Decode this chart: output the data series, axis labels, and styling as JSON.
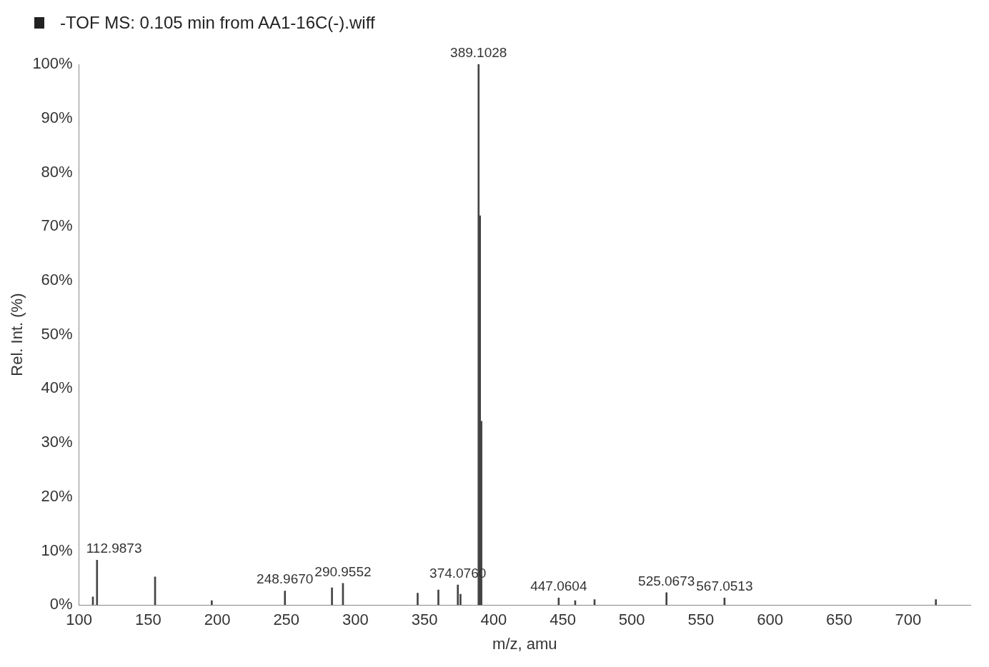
{
  "chart_data": {
    "type": "bar",
    "title": "-TOF MS: 0.105 min from AA1-16C(-).wiff",
    "xlabel": "m/z, amu",
    "ylabel": "Rel. Int. (%)",
    "x": [
      110.0,
      112.9873,
      155.0,
      196.0,
      248.967,
      283.0,
      290.9552,
      345.0,
      360.0,
      374.076,
      376.0,
      389.1028,
      390.1,
      391.1,
      447.0604,
      459.0,
      473.0,
      525.0673,
      567.0513,
      720.0
    ],
    "values": [
      1.5,
      8.3,
      5.2,
      0.8,
      2.6,
      3.2,
      4.0,
      2.2,
      2.8,
      3.7,
      2.0,
      100,
      72,
      34,
      1.3,
      0.8,
      1.0,
      2.3,
      1.3,
      1.0
    ],
    "color": "#444444",
    "annotations": [
      {
        "text": "112.9873",
        "x": 112.9873,
        "y": 8.3
      },
      {
        "text": "248.9670",
        "x": 248.967,
        "y": 2.6
      },
      {
        "text": "290.9552",
        "x": 290.9552,
        "y": 4.0
      },
      {
        "text": "374.0760",
        "x": 374.076,
        "y": 3.7
      },
      {
        "text": "389.1028",
        "x": 389.1028,
        "y": 100
      },
      {
        "text": "447.0604",
        "x": 447.0604,
        "y": 1.3
      },
      {
        "text": "525.0673",
        "x": 525.0673,
        "y": 2.3
      },
      {
        "text": "567.0513",
        "x": 567.0513,
        "y": 1.3
      }
    ],
    "xlim": [
      100,
      745
    ],
    "xticks": [
      100,
      150,
      200,
      250,
      300,
      350,
      400,
      450,
      500,
      550,
      600,
      650,
      700
    ],
    "ylim": [
      0,
      100
    ],
    "yticks": [
      {
        "value": 0,
        "label": "0%"
      },
      {
        "value": 10,
        "label": "10%"
      },
      {
        "value": 20,
        "label": "20%"
      },
      {
        "value": 30,
        "label": "30%"
      },
      {
        "value": 40,
        "label": "40%"
      },
      {
        "value": 50,
        "label": "50%"
      },
      {
        "value": 60,
        "label": "60%"
      },
      {
        "value": 70,
        "label": "70%"
      },
      {
        "value": 80,
        "label": "80%"
      },
      {
        "value": 90,
        "label": "90%"
      },
      {
        "value": 100,
        "label": "100%"
      }
    ],
    "grid": false,
    "legend": false
  }
}
